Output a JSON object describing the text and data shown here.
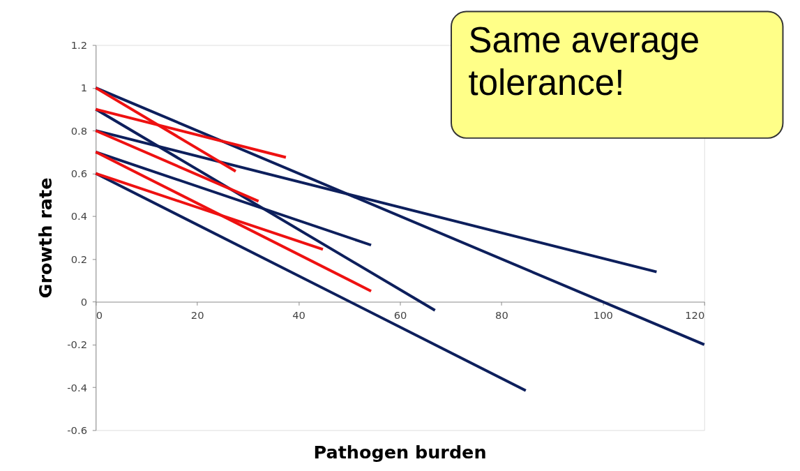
{
  "chart_data": {
    "type": "line",
    "xlabel": "Pathogen burden",
    "ylabel": "Growth rate",
    "xlim": [
      0,
      120
    ],
    "xticks": [
      0,
      20,
      40,
      60,
      80,
      100,
      120
    ],
    "ylim": [
      -0.6,
      1.2
    ],
    "yticks": [
      -0.6,
      -0.4,
      -0.2,
      0,
      0.2,
      0.4,
      0.6,
      0.8,
      1,
      1.2
    ],
    "grid": false,
    "legend": false,
    "marker": "none",
    "line_style": "solid",
    "annotations": [
      "Same average\ntolerance!"
    ],
    "series": [
      {
        "color": "#0d1f5c",
        "x": [
          0,
          120
        ],
        "values": [
          1.0,
          -0.2
        ]
      },
      {
        "color": "#0d1f5c",
        "x": [
          0,
          110.6
        ],
        "values": [
          0.8,
          0.14
        ]
      },
      {
        "color": "#0d1f5c",
        "x": [
          0,
          66.9
        ],
        "values": [
          0.9,
          -0.04
        ]
      },
      {
        "color": "#0d1f5c",
        "x": [
          0,
          54.3
        ],
        "values": [
          0.7,
          0.265
        ]
      },
      {
        "color": "#0d1f5c",
        "x": [
          0,
          84.8
        ],
        "values": [
          0.6,
          -0.415
        ]
      },
      {
        "color": "#ee1111",
        "x": [
          0,
          37.5
        ],
        "values": [
          0.9,
          0.675
        ]
      },
      {
        "color": "#ee1111",
        "x": [
          0,
          27.6
        ],
        "values": [
          1.0,
          0.61
        ]
      },
      {
        "color": "#ee1111",
        "x": [
          0,
          32.1
        ],
        "values": [
          0.8,
          0.47
        ]
      },
      {
        "color": "#ee1111",
        "x": [
          0,
          54.3
        ],
        "values": [
          0.7,
          0.05
        ]
      },
      {
        "color": "#ee1111",
        "x": [
          0,
          44.8
        ],
        "values": [
          0.6,
          0.245
        ]
      }
    ]
  }
}
